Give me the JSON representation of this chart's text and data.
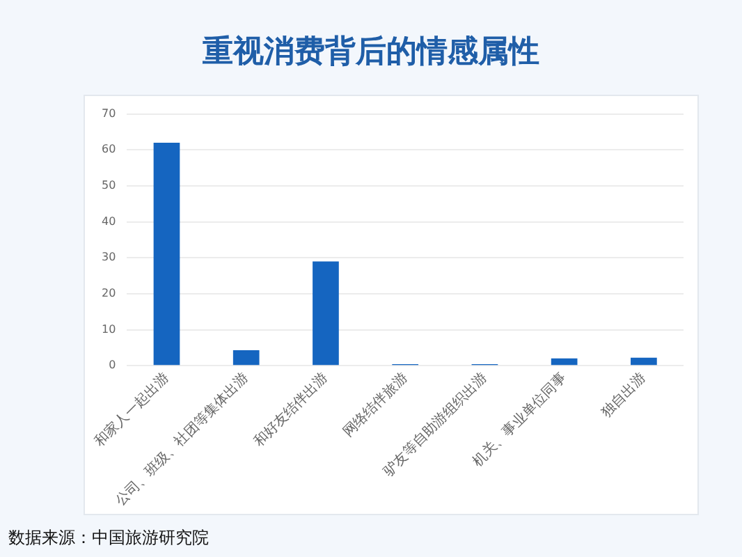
{
  "chart_data": {
    "type": "bar",
    "title": "重视消费背后的情感属性",
    "categories": [
      "和家人一起出游",
      "公司、班级、社团等集体出游",
      "和好友结伴出游",
      "网络结伴旅游",
      "驴友等自助游组织出游",
      "机关、事业单位同事",
      "独自出游"
    ],
    "values": [
      62,
      4.3,
      29,
      0.4,
      0.4,
      2,
      2.2
    ],
    "color": "#1565c0",
    "ylim": [
      0,
      70
    ],
    "yticks": [
      0,
      10,
      20,
      30,
      40,
      50,
      60,
      70
    ],
    "grid": "y",
    "legend": false,
    "annotations": [
      "数据来源：中国旅游研究院"
    ]
  }
}
